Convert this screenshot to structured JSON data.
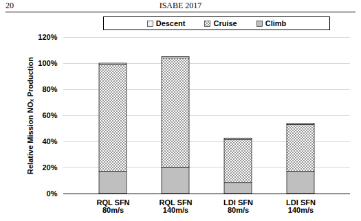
{
  "page": {
    "number": "20",
    "header": "ISABE 2017"
  },
  "chart_data": {
    "type": "bar",
    "stacked": true,
    "ylabel": "Relative Mission NOₓ Production",
    "categories": [
      "RQL SFN 80m/s",
      "RQL SFN 140m/s",
      "LDI SFN 80m/s",
      "LDI SFN 140m/s"
    ],
    "series": [
      {
        "name": "Climb",
        "color": "#bfbfbf",
        "values": [
          17,
          20,
          8.5,
          17
        ]
      },
      {
        "name": "Cruise",
        "color": "#7f7f7f",
        "values": [
          82,
          84,
          33,
          36
        ]
      },
      {
        "name": "Descent",
        "color": "#f2f2f2",
        "values": [
          1,
          1,
          1,
          1
        ]
      }
    ],
    "ylim": [
      0,
      120
    ],
    "yticks": [
      {
        "value": 0,
        "label": "0%"
      },
      {
        "value": 20,
        "label": "20%"
      },
      {
        "value": 40,
        "label": "40%"
      },
      {
        "value": 60,
        "label": "60%"
      },
      {
        "value": 80,
        "label": "80%"
      },
      {
        "value": 100,
        "label": "100%"
      },
      {
        "value": 120,
        "label": "120%"
      }
    ],
    "grid": true,
    "legend": "top"
  }
}
